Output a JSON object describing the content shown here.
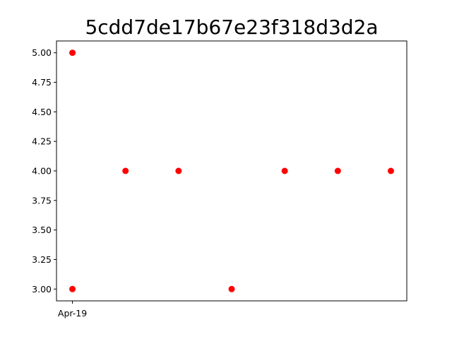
{
  "chart_data": {
    "type": "scatter",
    "title": "5cdd7de17b67e23f318d3d2a",
    "xlabel": "",
    "ylabel": "",
    "x_tick_labels": [
      "Apr-19"
    ],
    "points": [
      {
        "x": 0,
        "y": 5.0
      },
      {
        "x": 0,
        "y": 3.0
      },
      {
        "x": 1,
        "y": 4.0
      },
      {
        "x": 2,
        "y": 4.0
      },
      {
        "x": 3,
        "y": 3.0
      },
      {
        "x": 4,
        "y": 4.0
      },
      {
        "x": 5,
        "y": 4.0
      },
      {
        "x": 6,
        "y": 4.0
      }
    ],
    "xlim": [
      -0.3,
      6.3
    ],
    "ylim": [
      2.9,
      5.1
    ],
    "y_ticks": [
      3.0,
      3.25,
      3.5,
      3.75,
      4.0,
      4.25,
      4.5,
      4.75,
      5.0
    ],
    "y_tick_labels": [
      "3.00",
      "3.25",
      "3.50",
      "3.75",
      "4.00",
      "4.25",
      "4.50",
      "4.75",
      "5.00"
    ],
    "grid": false,
    "marker_color": "#ff0000"
  }
}
